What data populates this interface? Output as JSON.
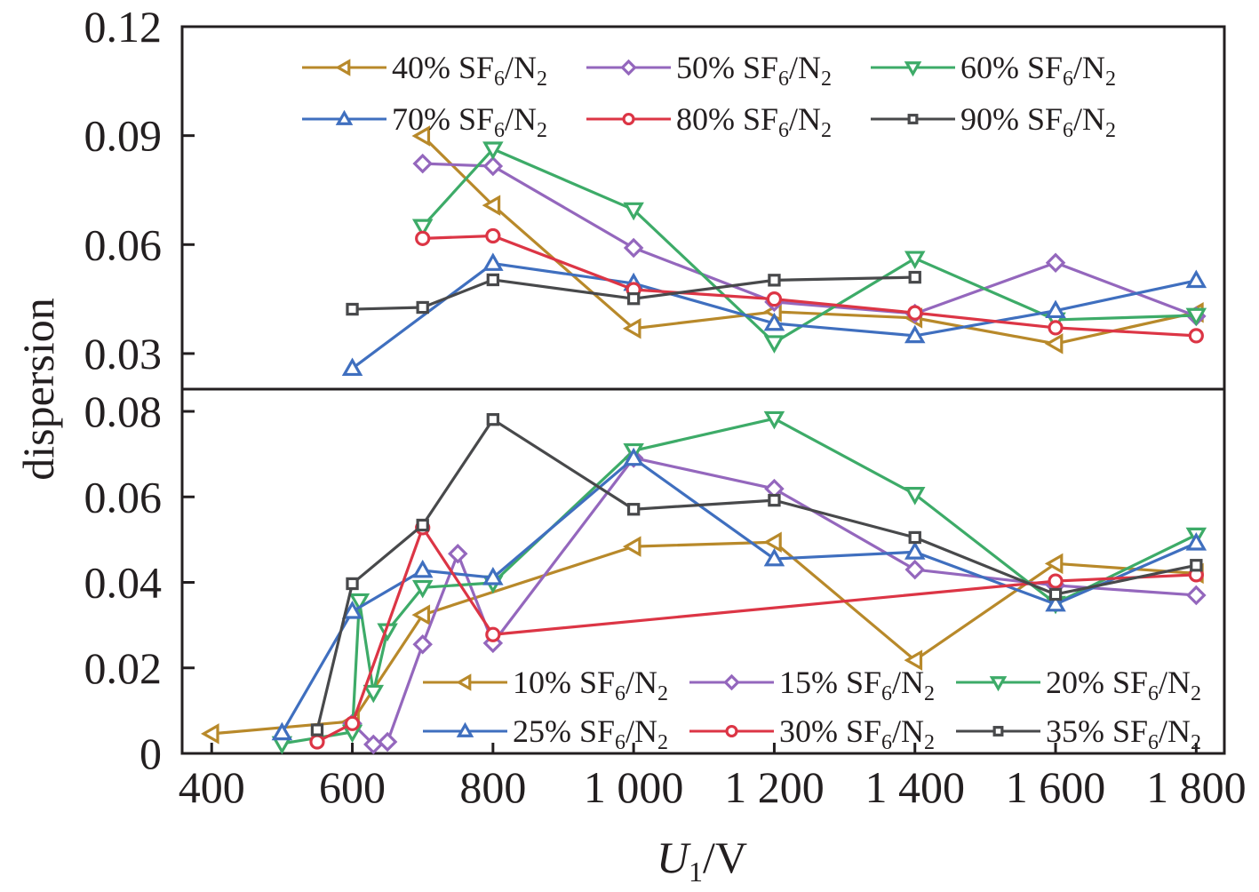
{
  "chart_data": {
    "type": "line",
    "title": "",
    "xlabel_italic": "U",
    "xlabel_sub": "1",
    "xlabel_rest": "/V",
    "ylabel": "dispersion",
    "xlim": [
      358,
      1840
    ],
    "x_ticks": [
      400,
      600,
      800,
      1000,
      1200,
      1400,
      1600,
      1800
    ],
    "x_tick_labels": [
      "400",
      "600",
      "800",
      "1 000",
      "1 200",
      "1 400",
      "1 600",
      "1 800"
    ],
    "grid": false,
    "panels": [
      {
        "name": "upper",
        "ylim": [
          0.0202,
          0.12
        ],
        "y_ticks": [
          0.03,
          0.06,
          0.09,
          0.12
        ],
        "y_tick_labels": [
          "0.03",
          "0.06",
          "0.09",
          "0.12"
        ],
        "legend_placement": "top",
        "series": [
          {
            "name": "40% SF6/N2",
            "label_pct": "40% SF",
            "sub1": "6",
            "mid": "/N",
            "sub2": "2",
            "color": "#b8892a",
            "marker": "triangle-left",
            "x": [
              700,
              800,
              1000,
              1200,
              1400,
              1600,
              1800
            ],
            "y": [
              0.0899,
              0.0708,
              0.0369,
              0.0415,
              0.0398,
              0.0327,
              0.0413
            ]
          },
          {
            "name": "50% SF6/N2",
            "label_pct": "50% SF",
            "sub1": "6",
            "mid": "/N",
            "sub2": "2",
            "color": "#9467bd",
            "marker": "diamond",
            "x": [
              700,
              800,
              1000,
              1200,
              1400,
              1600,
              1800
            ],
            "y": [
              0.0823,
              0.0816,
              0.0591,
              0.0442,
              0.041,
              0.055,
              0.0403
            ]
          },
          {
            "name": "60% SF6/N2",
            "label_pct": "60% SF",
            "sub1": "6",
            "mid": "/N",
            "sub2": "2",
            "color": "#3dab68",
            "marker": "triangle-down",
            "x": [
              700,
              800,
              1000,
              1200,
              1400,
              1600,
              1800
            ],
            "y": [
              0.065,
              0.0863,
              0.0696,
              0.033,
              0.0562,
              0.0393,
              0.0405
            ]
          },
          {
            "name": "70% SF6/N2",
            "label_pct": "70% SF",
            "sub1": "6",
            "mid": "/N",
            "sub2": "2",
            "color": "#3f6fbf",
            "marker": "triangle-up",
            "x": [
              600,
              800,
              1000,
              1200,
              1400,
              1600,
              1800
            ],
            "y": [
              0.0259,
              0.0548,
              0.0493,
              0.0383,
              0.0349,
              0.0418,
              0.0501
            ]
          },
          {
            "name": "80% SF6/N2",
            "label_pct": "80% SF",
            "sub1": "6",
            "mid": "/N",
            "sub2": "2",
            "color": "#dc3545",
            "marker": "circle",
            "x": [
              700,
              800,
              1000,
              1200,
              1400,
              1600,
              1800
            ],
            "y": [
              0.0617,
              0.0624,
              0.0476,
              0.045,
              0.0412,
              0.0371,
              0.0349
            ]
          },
          {
            "name": "90% SF6/N2",
            "label_pct": "90% SF",
            "sub1": "6",
            "mid": "/N",
            "sub2": "2",
            "color": "#48494b",
            "marker": "square",
            "x": [
              600,
              700,
              800,
              1000,
              1200,
              1400
            ],
            "y": [
              0.0422,
              0.0427,
              0.0503,
              0.0451,
              0.0502,
              0.051
            ]
          }
        ]
      },
      {
        "name": "lower",
        "ylim": [
          0,
          0.0852
        ],
        "y_ticks": [
          0,
          0.02,
          0.04,
          0.06,
          0.08
        ],
        "y_tick_labels": [
          "0",
          "0.02",
          "0.04",
          "0.06",
          "0.08"
        ],
        "legend_placement": "bottom-right",
        "series": [
          {
            "name": "10% SF6/N2",
            "label_pct": "10% SF",
            "sub1": "6",
            "mid": "/N",
            "sub2": "2",
            "color": "#b8892a",
            "marker": "triangle-left",
            "x": [
              400,
              600,
              700,
              1000,
              1200,
              1400,
              1600,
              1800
            ],
            "y": [
              0.0046,
              0.0075,
              0.0324,
              0.0484,
              0.0494,
              0.0218,
              0.0444,
              0.0421
            ]
          },
          {
            "name": "15% SF6/N2",
            "label_pct": "15% SF",
            "sub1": "6",
            "mid": "/N",
            "sub2": "2",
            "color": "#9467bd",
            "marker": "diamond",
            "x": [
              600,
              630,
              650,
              700,
              750,
              800,
              1000,
              1200,
              1400,
              1600,
              1800
            ],
            "y": [
              0.007,
              0.0021,
              0.0027,
              0.0255,
              0.0467,
              0.0258,
              0.0691,
              0.0619,
              0.043,
              0.0393,
              0.037
            ]
          },
          {
            "name": "20% SF6/N2",
            "label_pct": "20% SF",
            "sub1": "6",
            "mid": "/N",
            "sub2": "2",
            "color": "#3dab68",
            "marker": "triangle-down",
            "x": [
              500,
              600,
              610,
              630,
              650,
              700,
              800,
              1000,
              1200,
              1400,
              1600,
              1800
            ],
            "y": [
              0.0023,
              0.005,
              0.0357,
              0.0143,
              0.0287,
              0.0388,
              0.0399,
              0.0708,
              0.0783,
              0.0606,
              0.0351,
              0.0511
            ]
          },
          {
            "name": "25% SF6/N2",
            "label_pct": "25% SF",
            "sub1": "6",
            "mid": "/N",
            "sub2": "2",
            "color": "#3f6fbf",
            "marker": "triangle-up",
            "x": [
              500,
              600,
              700,
              800,
              1000,
              1200,
              1400,
              1600,
              1800
            ],
            "y": [
              0.0048,
              0.0332,
              0.0428,
              0.0411,
              0.069,
              0.0455,
              0.0471,
              0.0349,
              0.0492
            ]
          },
          {
            "name": "30% SF6/N2",
            "label_pct": "30% SF",
            "sub1": "6",
            "mid": "/N",
            "sub2": "2",
            "color": "#dc3545",
            "marker": "circle",
            "x": [
              550,
              600,
              700,
              800,
              1600,
              1800
            ],
            "y": [
              0.0027,
              0.007,
              0.0528,
              0.0278,
              0.0403,
              0.0418
            ]
          },
          {
            "name": "35% SF6/N2",
            "label_pct": "35% SF",
            "sub1": "6",
            "mid": "/N",
            "sub2": "2",
            "color": "#48494b",
            "marker": "square",
            "x": [
              550,
              600,
              700,
              800,
              1000,
              1200,
              1400,
              1600,
              1800
            ],
            "y": [
              0.0055,
              0.0397,
              0.0534,
              0.0781,
              0.0571,
              0.0592,
              0.0505,
              0.0372,
              0.044
            ]
          }
        ]
      }
    ]
  }
}
